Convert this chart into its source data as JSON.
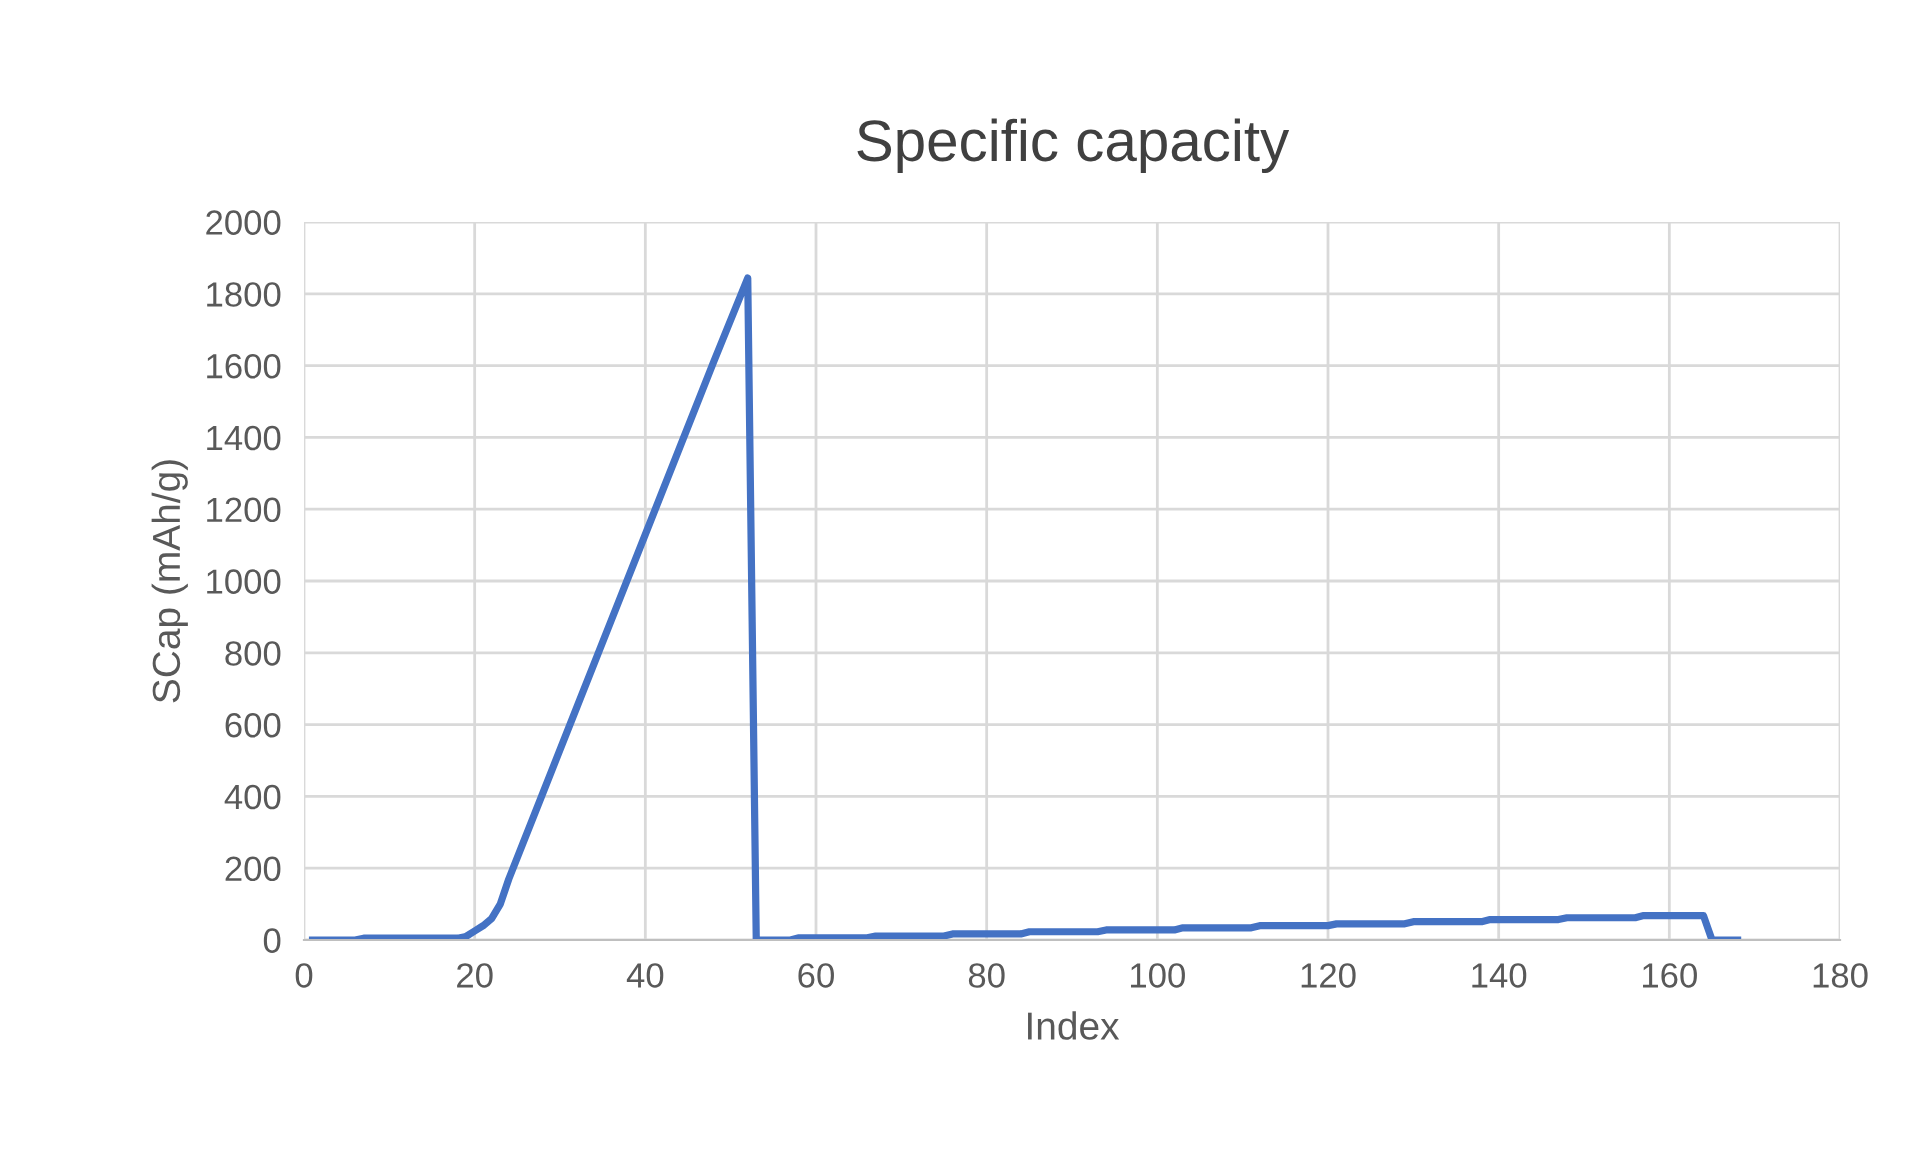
{
  "chart_data": {
    "type": "line",
    "title": "Specific capacity",
    "xlabel": "Index",
    "ylabel": "SCap (mAh/g)",
    "series": [
      {
        "color": "#4472c4",
        "x": [
          1,
          6,
          7,
          18,
          19,
          20,
          21,
          22,
          23,
          24,
          28,
          32,
          36,
          40,
          44,
          48,
          52,
          53,
          57,
          58,
          66,
          67,
          75,
          76,
          84,
          85,
          93,
          94,
          102,
          103,
          111,
          112,
          120,
          121,
          129,
          130,
          138,
          139,
          147,
          148,
          156,
          157,
          164,
          165,
          168
        ],
        "values": [
          0,
          0,
          5,
          5,
          10,
          25,
          40,
          60,
          100,
          170,
          410,
          650,
          890,
          1130,
          1370,
          1610,
          1844,
          0,
          0,
          6,
          6,
          11,
          11,
          17,
          17,
          23,
          23,
          28,
          28,
          34,
          34,
          40,
          40,
          45,
          45,
          51,
          51,
          57,
          57,
          62,
          62,
          68,
          68,
          0,
          0
        ]
      }
    ],
    "xlim": [
      0,
      180
    ],
    "xticks": [
      0,
      20,
      40,
      60,
      80,
      100,
      120,
      140,
      160,
      180
    ],
    "ylim": [
      0,
      2000
    ],
    "yticks": [
      0,
      200,
      400,
      600,
      800,
      1000,
      1200,
      1400,
      1600,
      1800,
      2000
    ],
    "grid": true,
    "legend": false,
    "marker": "none",
    "line_style": "solid"
  }
}
